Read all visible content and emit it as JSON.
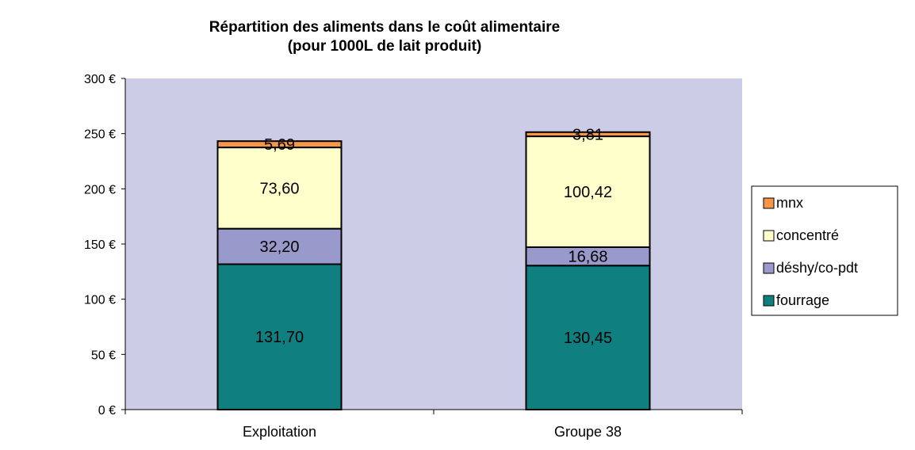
{
  "chart_data": {
    "type": "bar",
    "stacked": true,
    "title": "Répartition des aliments dans le coût alimentaire",
    "subtitle": "(pour 1000L de lait produit)",
    "categories": [
      "Exploitation",
      "Groupe 38"
    ],
    "series": [
      {
        "name": "fourrage",
        "color": "#0f7f7f",
        "values": [
          131.7,
          130.45
        ],
        "labels": [
          "131,70",
          "130,45"
        ]
      },
      {
        "name": "déshy/co-pdt",
        "color": "#9999cc",
        "values": [
          32.2,
          16.68
        ],
        "labels": [
          "32,20",
          "16,68"
        ]
      },
      {
        "name": "concentré",
        "color": "#ffffcc",
        "values": [
          73.6,
          100.42
        ],
        "labels": [
          "73,60",
          "100,42"
        ]
      },
      {
        "name": "mnx",
        "color": "#f79646",
        "values": [
          5.69,
          3.81
        ],
        "labels": [
          "5,69",
          "3,81"
        ]
      }
    ],
    "legend_order": [
      "mnx",
      "concentré",
      "déshy/co-pdt",
      "fourrage"
    ],
    "ylim": [
      0,
      300
    ],
    "yticks": [
      0,
      50,
      100,
      150,
      200,
      250,
      300
    ],
    "ytick_labels": [
      "0 €",
      "50 €",
      "100 €",
      "150 €",
      "200 €",
      "250 €",
      "300 €"
    ],
    "xlabel": "",
    "ylabel": "",
    "plot_background": "#ccccE6",
    "legend_position": "right",
    "grid": false
  }
}
